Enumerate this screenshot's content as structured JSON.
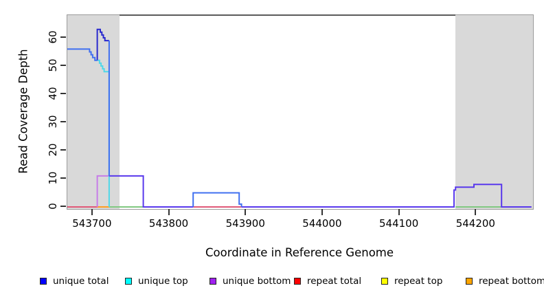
{
  "figure": {
    "x_axis_title": "Coordinate in Reference Genome",
    "y_axis_title": "Read Coverage Depth"
  },
  "chart_data": {
    "type": "line",
    "title": "",
    "xlabel": "Coordinate in Reference Genome",
    "ylabel": "Read Coverage Depth",
    "xlim": [
      543667,
      544274
    ],
    "ylim": [
      0,
      69
    ],
    "grid": false,
    "legend_position": "bottom",
    "x_ticks": [
      543700,
      543800,
      543900,
      544000,
      544100,
      544200
    ],
    "y_ticks": [
      0,
      10,
      20,
      30,
      40,
      50,
      60
    ],
    "shaded_regions": [
      {
        "name": "left-gray-region",
        "x0": 543667,
        "x1": 543735
      },
      {
        "name": "right-gray-region",
        "x0": 544173,
        "x1": 544274
      }
    ],
    "colors": {
      "light_blue": "#4070f0",
      "dark_blue": "#2828ce",
      "cyan": "#50d8e8",
      "light_purple": "#c67ce8",
      "violet": "#5838ec",
      "pink_red": "#e05878",
      "orange": "#ff9c20",
      "green": "#80c880",
      "shade_gray": "#d9d9d9"
    },
    "series": [
      {
        "name": "repeat-total-baseline",
        "color_key": "pink_red",
        "paths": [
          [
            [
              543667,
              0
            ],
            [
              543706,
              0
            ]
          ],
          [
            [
              543831,
              0
            ],
            [
              543894,
              0
            ]
          ]
        ]
      },
      {
        "name": "repeat-bottom-baseline",
        "color_key": "orange",
        "paths": [
          [
            [
              543706,
              0
            ],
            [
              543721.5,
              0
            ]
          ]
        ]
      },
      {
        "name": "overlap-top-baseline",
        "color_key": "green",
        "paths": [
          [
            [
              543721.5,
              0
            ],
            [
              543766,
              0
            ]
          ],
          [
            [
              544173,
              0
            ],
            [
              544233,
              0
            ]
          ]
        ]
      },
      {
        "name": "unique-bottom-step",
        "color_key": "light_purple",
        "paths": [
          [
            [
              543706,
              0
            ],
            [
              543706,
              11
            ],
            [
              543721.5,
              11
            ]
          ]
        ]
      },
      {
        "name": "unique-top-steps",
        "color_key": "cyan",
        "paths": [
          [
            [
              543706,
              52
            ],
            [
              543709,
              52
            ],
            [
              543709,
              51
            ],
            [
              543711,
              51
            ],
            [
              543711,
              50
            ],
            [
              543713,
              50
            ],
            [
              543713,
              49
            ],
            [
              543715,
              49
            ],
            [
              543715,
              48
            ],
            [
              543721.5,
              48
            ],
            [
              543721.5,
              0
            ]
          ]
        ]
      },
      {
        "name": "unique-total-bottom-overlay",
        "color_key": "violet",
        "paths": [
          [
            [
              543721.5,
              11
            ],
            [
              543766,
              11
            ],
            [
              543766,
              0
            ],
            [
              543831,
              0
            ]
          ],
          [
            [
              543894,
              0
            ],
            [
              544171,
              0
            ],
            [
              544171,
              6
            ],
            [
              544173,
              6
            ],
            [
              544173,
              7
            ],
            [
              544197,
              7
            ],
            [
              544197,
              8
            ],
            [
              544233,
              8
            ],
            [
              544233,
              0
            ],
            [
              544272,
              0
            ]
          ]
        ]
      },
      {
        "name": "unique-total-peak",
        "color_key": "dark_blue",
        "paths": [
          [
            [
              543706,
              52
            ],
            [
              543706,
              63
            ],
            [
              543710,
              63
            ],
            [
              543710,
              62
            ],
            [
              543712,
              62
            ],
            [
              543712,
              61
            ],
            [
              543714,
              61
            ],
            [
              543714,
              60
            ],
            [
              543716,
              60
            ],
            [
              543716,
              59
            ],
            [
              543721.5,
              59
            ]
          ]
        ]
      },
      {
        "name": "unique-total-main",
        "color_key": "light_blue",
        "paths": [
          [
            [
              543667,
              56
            ],
            [
              543696,
              56
            ],
            [
              543696,
              55
            ],
            [
              543698,
              55
            ],
            [
              543698,
              54
            ],
            [
              543700,
              54
            ],
            [
              543700,
              53
            ],
            [
              543703,
              53
            ],
            [
              543703,
              52
            ],
            [
              543706,
              52
            ]
          ],
          [
            [
              543721.5,
              59
            ],
            [
              543721.5,
              11
            ]
          ],
          [
            [
              543831,
              0
            ],
            [
              543831,
              5
            ],
            [
              543891,
              5
            ],
            [
              543891,
              1
            ],
            [
              543894,
              1
            ],
            [
              543894,
              0
            ]
          ]
        ]
      }
    ],
    "legend": [
      {
        "label": "unique total",
        "color": "#0000ff"
      },
      {
        "label": "unique top",
        "color": "#00ffff"
      },
      {
        "label": "unique bottom",
        "color": "#a020f0"
      },
      {
        "label": "repeat total",
        "color": "#ff0000"
      },
      {
        "label": "repeat top",
        "color": "#ffff00"
      },
      {
        "label": "repeat bottom",
        "color": "#ffa500"
      }
    ]
  }
}
